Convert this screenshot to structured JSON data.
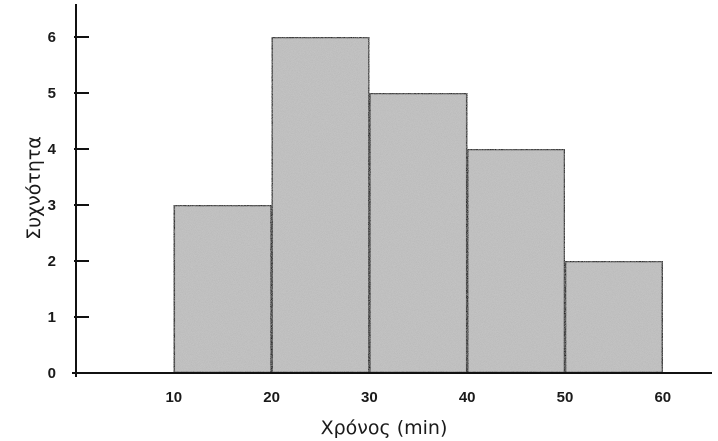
{
  "chart_data": {
    "type": "bar",
    "subtype": "histogram",
    "bins": [
      {
        "from": 10,
        "to": 20,
        "value": 3
      },
      {
        "from": 20,
        "to": 30,
        "value": 6
      },
      {
        "from": 30,
        "to": 40,
        "value": 5
      },
      {
        "from": 40,
        "to": 50,
        "value": 4
      },
      {
        "from": 50,
        "to": 60,
        "value": 2
      }
    ],
    "xlabel": "Χρόνος (min)",
    "ylabel": "Συχνότητα",
    "xticks": [
      "10",
      "20",
      "30",
      "40",
      "50",
      "60"
    ],
    "yticks": [
      "0",
      "1",
      "2",
      "3",
      "4",
      "5",
      "6"
    ],
    "xlim": [
      0,
      66
    ],
    "ylim": [
      0,
      6.5
    ],
    "grid": false,
    "bar_color": "#c4c4c4",
    "edge_color": "#111111"
  }
}
